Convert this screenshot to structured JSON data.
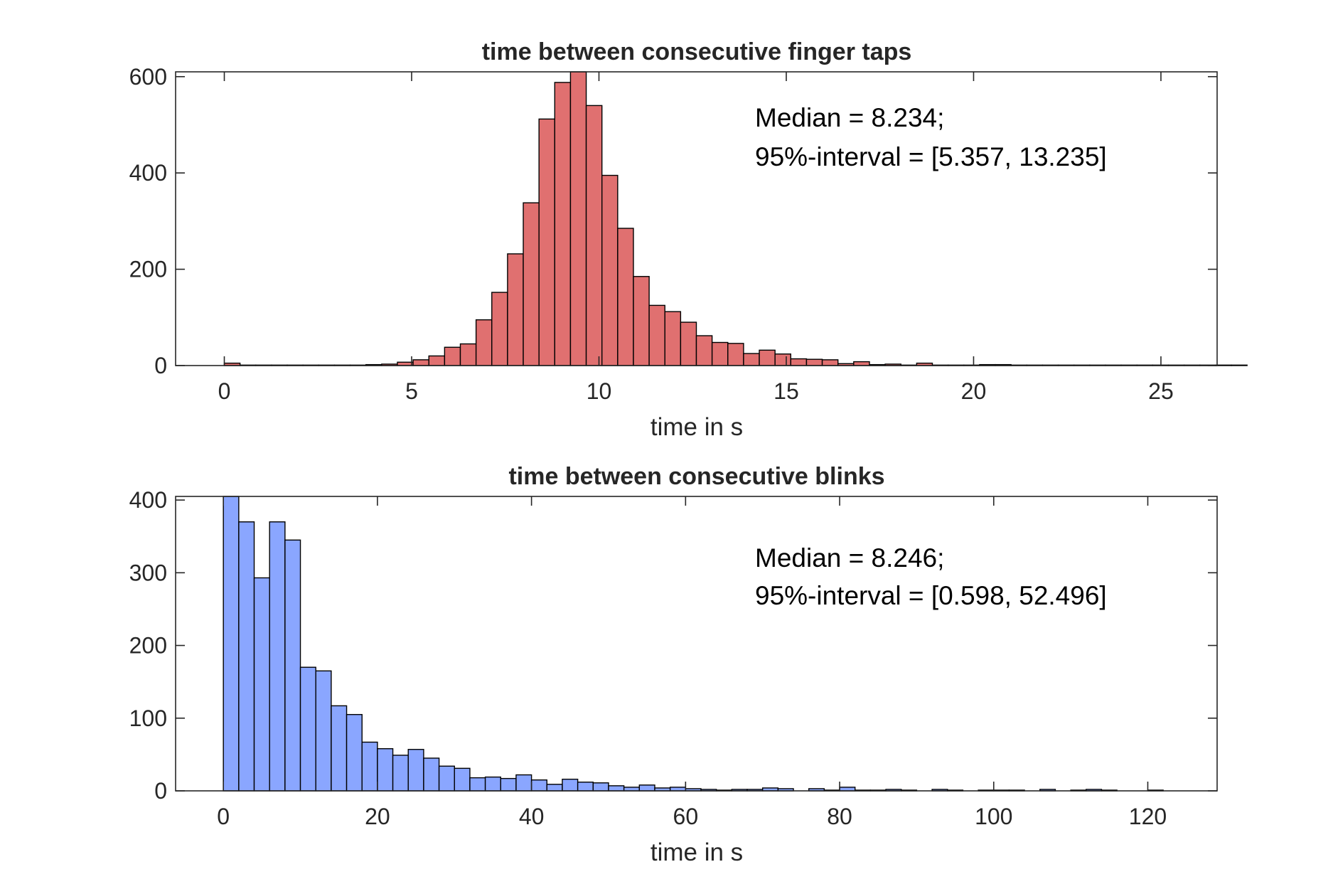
{
  "chart_data": [
    {
      "type": "bar",
      "title": "time between consecutive finger taps",
      "xlabel": "time in s",
      "ylabel": "",
      "xlim": [
        -1.3,
        26.5
      ],
      "ylim": [
        0,
        610
      ],
      "xticks": [
        0,
        5,
        10,
        15,
        20,
        25
      ],
      "yticks": [
        0,
        200,
        400,
        600
      ],
      "bin_edges_start": 0,
      "bin_width": 0.42,
      "values": [
        5,
        1,
        1,
        1,
        1,
        1,
        1,
        1,
        1,
        2,
        3,
        7,
        12,
        20,
        38,
        45,
        95,
        152,
        232,
        338,
        512,
        588,
        612,
        540,
        395,
        285,
        185,
        125,
        112,
        90,
        62,
        48,
        46,
        25,
        32,
        24,
        14,
        13,
        12,
        4,
        8,
        2,
        3,
        1,
        5,
        1,
        1,
        1,
        2,
        2,
        1,
        1,
        1,
        1,
        1,
        1,
        1,
        1,
        1,
        1,
        1,
        1,
        1,
        1,
        1
      ],
      "bar_color": "#e07070",
      "annotations": [
        "Median = 8.234;",
        "95%-interval = [5.357, 13.235]"
      ]
    },
    {
      "type": "bar",
      "title": "time between consecutive blinks",
      "xlabel": "time in s",
      "ylabel": "",
      "xlim": [
        -6.2,
        129
      ],
      "ylim": [
        0,
        405
      ],
      "xticks": [
        0,
        20,
        40,
        60,
        80,
        100,
        120
      ],
      "yticks": [
        0,
        100,
        200,
        300,
        400
      ],
      "bin_edges_start": 0,
      "bin_width": 2.0,
      "values": [
        405,
        370,
        293,
        370,
        345,
        170,
        165,
        117,
        105,
        67,
        58,
        49,
        57,
        45,
        34,
        31,
        18,
        19,
        17,
        22,
        15,
        9,
        16,
        12,
        11,
        7,
        5,
        8,
        4,
        5,
        3,
        2,
        1,
        2,
        2,
        4,
        3,
        0,
        3,
        1,
        5,
        1,
        1,
        2,
        1,
        0,
        2,
        1,
        0,
        1,
        1,
        1,
        0,
        2,
        0,
        1,
        2,
        1,
        0,
        0,
        1
      ],
      "bar_color": "#8aa6ff",
      "annotations": [
        "Median = 8.246;",
        "95%-interval = [0.598, 52.496]"
      ]
    }
  ]
}
